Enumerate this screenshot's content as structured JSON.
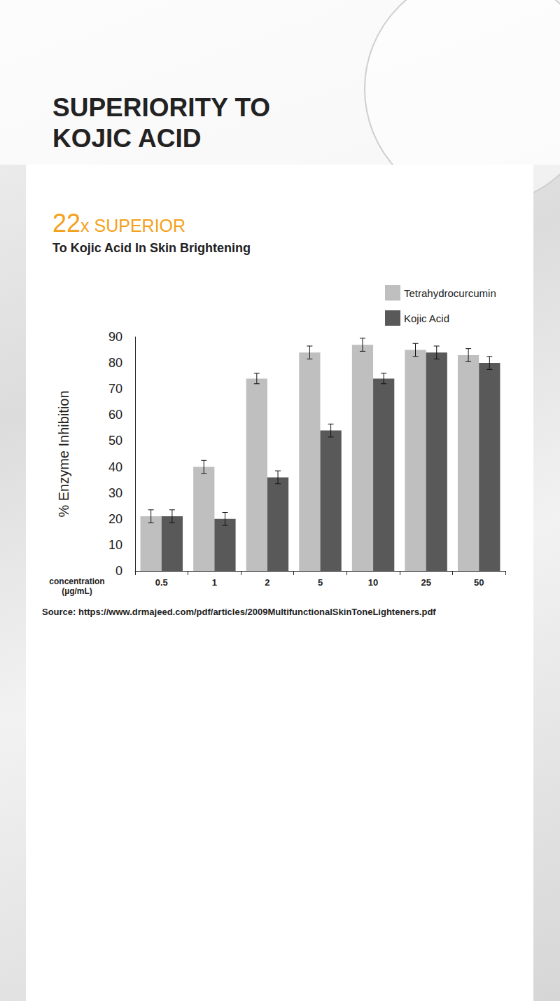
{
  "chart_data": {
    "type": "bar",
    "title": "SUPERIORITY TO KOJIC ACID",
    "subtitle": "22x SUPERIOR",
    "caption": "To Kojic Acid In Skin Brightening",
    "source": "Source: https://www.drmajeed.com/pdf/articles/2009MultifunctionalSkinToneLighteners.pdf",
    "y_label": "% Enzyme Inhibition",
    "x_label": "concentration (µg/mL)",
    "categories": [
      "0.5",
      "1",
      "2",
      "5",
      "10",
      "25",
      "50"
    ],
    "series": [
      {
        "name": "Tetrahydrocurcumin",
        "color": "#c0bfbf",
        "values": [
          21,
          40,
          74,
          84,
          87,
          85,
          83
        ],
        "errors": [
          2.5,
          2.5,
          2,
          2.5,
          2.5,
          2.5,
          2.5
        ]
      },
      {
        "name": "Kojic Acid",
        "color": "#595959",
        "values": [
          21,
          20,
          36,
          54,
          74,
          84,
          80
        ],
        "errors": [
          2.5,
          2.5,
          2.5,
          2.5,
          2,
          2.5,
          2.5
        ]
      }
    ],
    "ylim": [
      0,
      90
    ],
    "yticks": [
      0,
      10,
      20,
      30,
      40,
      50,
      60,
      70,
      80,
      90
    ],
    "grid": false,
    "legend": "top-right"
  }
}
